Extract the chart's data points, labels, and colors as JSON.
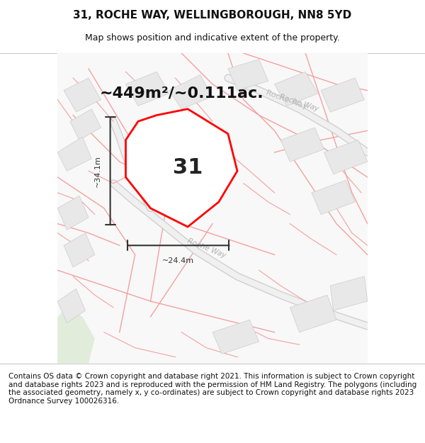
{
  "title": "31, ROCHE WAY, WELLINGBOROUGH, NN8 5YD",
  "subtitle": "Map shows position and indicative extent of the property.",
  "area_text": "~449m²/~0.111ac.",
  "label_31": "31",
  "dim_width": "~24.4m",
  "dim_height": "~34.1m",
  "footer": "Contains OS data © Crown copyright and database right 2021. This information is subject to Crown copyright and database rights 2023 and is reproduced with the permission of HM Land Registry. The polygons (including the associated geometry, namely x, y co-ordinates) are subject to Crown copyright and database rights 2023 Ordnance Survey 100026316.",
  "bg_color": "#f5f5f5",
  "map_bg": "#f8f8f8",
  "road_color_light": "#f5a0a0",
  "road_color_dark": "#e07070",
  "building_fill": "#e8e8e8",
  "building_edge": "#cccccc",
  "highlight_fill": "#ffffff",
  "highlight_edge": "#ff0000",
  "road_label_color": "#aaaaaa",
  "dim_color": "#333333",
  "title_fontsize": 11,
  "subtitle_fontsize": 9,
  "area_fontsize": 16,
  "label_fontsize": 22,
  "footer_fontsize": 7.5
}
